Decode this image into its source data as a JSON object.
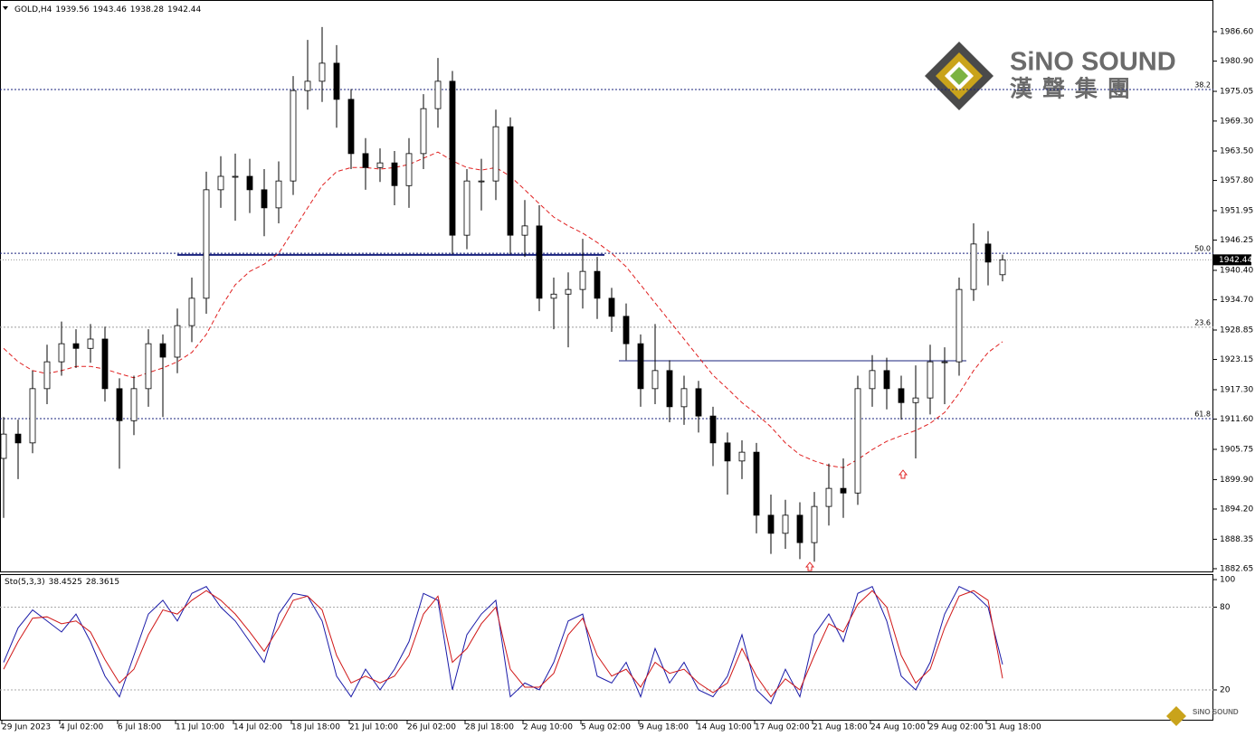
{
  "chart_data": [
    {
      "type": "candlestick",
      "symbol": "GOLD,H4",
      "open": [
        1904.0,
        1908.7,
        1907.0,
        1917.5,
        1922.7,
        1926.2,
        1925.3,
        1927.1,
        1917.5,
        1911.3,
        1917.5,
        1926.2,
        1923.6,
        1929.7,
        1935.0,
        1956.0,
        1958.6,
        1958.6,
        1956.0,
        1952.5,
        1957.7,
        1975.2,
        1977.0,
        1980.5,
        1973.5,
        1963.0,
        1960.3,
        1961.2,
        1956.8,
        1963.0,
        1971.7,
        1977.0,
        1947.2,
        1957.7,
        1957.7,
        1968.2,
        1947.2,
        1949.0,
        1935.0,
        1935.8,
        1936.7,
        1940.2,
        1935.0,
        1931.5,
        1926.2,
        1917.5,
        1921.0,
        1914.0,
        1917.5,
        1912.2,
        1907.0,
        1903.5,
        1905.2,
        1893.0,
        1889.5,
        1893.0,
        1887.7,
        1894.7,
        1898.2,
        1897.3,
        1917.5,
        1921.0,
        1917.5,
        1914.8,
        1915.7,
        1922.7,
        1922.7,
        1936.7,
        1945.5,
        1939.56
      ],
      "high": [
        1912.0,
        1911.5,
        1921.0,
        1926.0,
        1930.5,
        1929.0,
        1930.0,
        1929.5,
        1919.5,
        1920.0,
        1929.0,
        1928.0,
        1933.0,
        1939.0,
        1959.5,
        1962.5,
        1963.0,
        1962.0,
        1960.0,
        1961.5,
        1978.0,
        1985.0,
        1987.5,
        1984.0,
        1975.5,
        1966.0,
        1964.0,
        1963.5,
        1966.0,
        1974.5,
        1981.5,
        1979.0,
        1960.0,
        1962.0,
        1971.5,
        1970.0,
        1954.0,
        1953.0,
        1939.0,
        1940.0,
        1946.5,
        1943.0,
        1937.0,
        1934.0,
        1928.0,
        1930.0,
        1923.0,
        1920.0,
        1919.0,
        1914.0,
        1909.0,
        1907.5,
        1907.0,
        1897.0,
        1896.0,
        1895.5,
        1897.5,
        1903.0,
        1904.0,
        1920.0,
        1924.0,
        1923.5,
        1920.0,
        1922.0,
        1926.0,
        1925.5,
        1939.0,
        1949.5,
        1948.0,
        1943.46
      ],
      "low": [
        1892.5,
        1900.0,
        1905.0,
        1914.5,
        1920.0,
        1921.5,
        1922.5,
        1915.0,
        1902.0,
        1908.5,
        1914.0,
        1912.0,
        1920.5,
        1926.5,
        1932.0,
        1952.5,
        1950.0,
        1951.5,
        1947.0,
        1949.5,
        1955.0,
        1971.5,
        1973.0,
        1968.0,
        1960.0,
        1956.0,
        1957.5,
        1953.0,
        1952.5,
        1960.0,
        1968.0,
        1943.5,
        1944.5,
        1952.0,
        1954.0,
        1943.5,
        1943.0,
        1932.5,
        1929.0,
        1925.5,
        1933.0,
        1931.0,
        1928.5,
        1923.0,
        1914.0,
        1914.5,
        1911.0,
        1910.5,
        1909.0,
        1902.5,
        1897.0,
        1900.0,
        1889.5,
        1885.5,
        1886.5,
        1884.5,
        1884.0,
        1891.0,
        1892.5,
        1895.0,
        1914.0,
        1913.5,
        1911.5,
        1904.0,
        1912.5,
        1914.5,
        1920.0,
        1934.5,
        1937.5,
        1938.28
      ],
      "close": [
        1908.7,
        1907.0,
        1917.5,
        1922.7,
        1926.2,
        1925.3,
        1927.1,
        1917.5,
        1911.3,
        1917.5,
        1926.2,
        1923.6,
        1929.7,
        1935.0,
        1956.0,
        1958.6,
        1958.6,
        1956.0,
        1952.5,
        1957.7,
        1975.2,
        1977.0,
        1980.5,
        1973.5,
        1963.0,
        1960.3,
        1961.2,
        1956.8,
        1963.0,
        1971.7,
        1977.0,
        1947.2,
        1957.7,
        1957.7,
        1968.2,
        1947.2,
        1949.0,
        1935.0,
        1935.8,
        1936.7,
        1940.2,
        1935.0,
        1931.5,
        1926.2,
        1917.5,
        1921.0,
        1914.0,
        1917.5,
        1912.2,
        1907.0,
        1903.5,
        1905.2,
        1893.0,
        1889.5,
        1893.0,
        1887.7,
        1894.7,
        1898.2,
        1897.3,
        1917.5,
        1921.0,
        1917.5,
        1914.8,
        1915.7,
        1922.7,
        1922.7,
        1936.7,
        1945.5,
        1942.0,
        1942.44
      ],
      "ma": {
        "color": "#e02020",
        "values": [
          1925.3,
          1922.7,
          1921.0,
          1920.4,
          1921.0,
          1921.8,
          1921.8,
          1921.3,
          1920.4,
          1919.6,
          1920.6,
          1921.5,
          1922.7,
          1924.5,
          1928.0,
          1933.2,
          1937.6,
          1940.2,
          1941.6,
          1943.7,
          1948.1,
          1952.5,
          1956.8,
          1959.5,
          1960.3,
          1960.3,
          1960.0,
          1960.3,
          1960.9,
          1962.1,
          1963.3,
          1961.6,
          1960.3,
          1959.8,
          1960.3,
          1958.6,
          1956.0,
          1953.3,
          1950.7,
          1949.0,
          1947.6,
          1945.8,
          1943.7,
          1941.1,
          1937.6,
          1934.1,
          1930.6,
          1927.1,
          1923.6,
          1920.1,
          1917.5,
          1914.8,
          1912.6,
          1910.1,
          1907.0,
          1904.7,
          1903.5,
          1902.6,
          1902.2,
          1903.8,
          1905.7,
          1907.3,
          1908.4,
          1909.4,
          1910.8,
          1912.9,
          1916.6,
          1921.0,
          1924.5,
          1926.6
        ]
      },
      "ylim": [
        1882.12,
        1992.73
      ],
      "yticks": [
        {
          "value": 1986.6,
          "label": "1986.60"
        },
        {
          "value": 1980.9,
          "label": "1980.90"
        },
        {
          "value": 1975.05,
          "label": "1975.05"
        },
        {
          "value": 1969.3,
          "label": "1969.30"
        },
        {
          "value": 1963.5,
          "label": "1963.50"
        },
        {
          "value": 1957.8,
          "label": "1957.80"
        },
        {
          "value": 1951.95,
          "label": "1951.95"
        },
        {
          "value": 1946.25,
          "label": "1946.25"
        },
        {
          "value": 1940.4,
          "label": "1940.40"
        },
        {
          "value": 1934.7,
          "label": "1934.70"
        },
        {
          "value": 1928.85,
          "label": "1928.85"
        },
        {
          "value": 1923.15,
          "label": "1923.15"
        },
        {
          "value": 1917.3,
          "label": "1917.30"
        },
        {
          "value": 1911.6,
          "label": "1911.60"
        },
        {
          "value": 1905.75,
          "label": "1905.75"
        },
        {
          "value": 1899.9,
          "label": "1899.90"
        },
        {
          "value": 1894.2,
          "label": "1894.20"
        },
        {
          "value": 1888.35,
          "label": "1888.35"
        },
        {
          "value": 1882.65,
          "label": "1882.65"
        }
      ],
      "xticks": [
        {
          "value": 0,
          "label": "29 Jun 2023"
        },
        {
          "value": 4,
          "label": "4 Jul 02:00"
        },
        {
          "value": 8,
          "label": "6 Jul 18:00"
        },
        {
          "value": 12,
          "label": "11 Jul 10:00"
        },
        {
          "value": 16,
          "label": "14 Jul 02:00"
        },
        {
          "value": 20,
          "label": "18 Jul 18:00"
        },
        {
          "value": 24,
          "label": "21 Jul 10:00"
        },
        {
          "value": 28,
          "label": "26 Jul 02:00"
        },
        {
          "value": 32,
          "label": "28 Jul 18:00"
        },
        {
          "value": 36,
          "label": "2 Aug 10:00"
        },
        {
          "value": 40,
          "label": "5 Aug 02:00"
        },
        {
          "value": 44,
          "label": "9 Aug 18:00"
        },
        {
          "value": 48,
          "label": "14 Aug 10:00"
        },
        {
          "value": 52,
          "label": "17 Aug 02:00"
        },
        {
          "value": 56,
          "label": "21 Aug 18:00"
        },
        {
          "value": 60,
          "label": "24 Aug 10:00"
        },
        {
          "value": 64,
          "label": "29 Aug 02:00"
        },
        {
          "value": 68,
          "label": "31 Aug 18:00"
        }
      ],
      "fib_levels": [
        {
          "label": "38.2",
          "price": 1975.4,
          "color": "#1a237e"
        },
        {
          "label": "50.0",
          "price": 1943.7,
          "color": "#1a237e"
        },
        {
          "label": "23.6",
          "price": 1929.4,
          "color": "#9e9e9e"
        },
        {
          "label": "61.8",
          "price": 1911.7,
          "color": "#1a237e"
        }
      ],
      "hlines": [
        {
          "price": 1943.4,
          "from": 12,
          "to": 41.5,
          "color": "#1a237e"
        },
        {
          "price": 1922.9,
          "from": 42.5,
          "to": 66.5,
          "color": "#1a237e"
        }
      ]
    },
    {
      "type": "line",
      "title": "Sto(5,3,3)",
      "series": [
        {
          "color": "#1a1aa8",
          "values": [
            40,
            65,
            78,
            70,
            62,
            75,
            55,
            30,
            15,
            45,
            75,
            85,
            70,
            90,
            95,
            80,
            70,
            55,
            40,
            75,
            90,
            88,
            70,
            30,
            15,
            35,
            20,
            35,
            55,
            90,
            85,
            20,
            60,
            75,
            85,
            15,
            25,
            20,
            40,
            70,
            75,
            30,
            25,
            40,
            15,
            50,
            25,
            40,
            20,
            15,
            30,
            60,
            20,
            10,
            35,
            15,
            60,
            75,
            55,
            90,
            95,
            70,
            30,
            20,
            40,
            75,
            95,
            90,
            80,
            38.4525
          ]
        },
        {
          "color": "#d01818",
          "values": [
            35,
            55,
            72,
            73,
            68,
            70,
            62,
            42,
            25,
            35,
            60,
            78,
            75,
            85,
            92,
            85,
            75,
            62,
            48,
            65,
            85,
            88,
            78,
            45,
            25,
            30,
            25,
            30,
            45,
            75,
            88,
            40,
            50,
            68,
            80,
            35,
            22,
            22,
            32,
            60,
            72,
            45,
            30,
            35,
            22,
            40,
            32,
            35,
            25,
            18,
            25,
            50,
            30,
            15,
            28,
            20,
            45,
            68,
            62,
            82,
            92,
            80,
            45,
            25,
            35,
            65,
            88,
            92,
            85,
            28.3615
          ]
        }
      ],
      "ylim": [
        -2.3,
        103.3
      ],
      "yticks": [
        20,
        80,
        100
      ]
    }
  ],
  "logo": {
    "name": "SiNO SOUND",
    "chinese": "漢 聲 集 團"
  }
}
